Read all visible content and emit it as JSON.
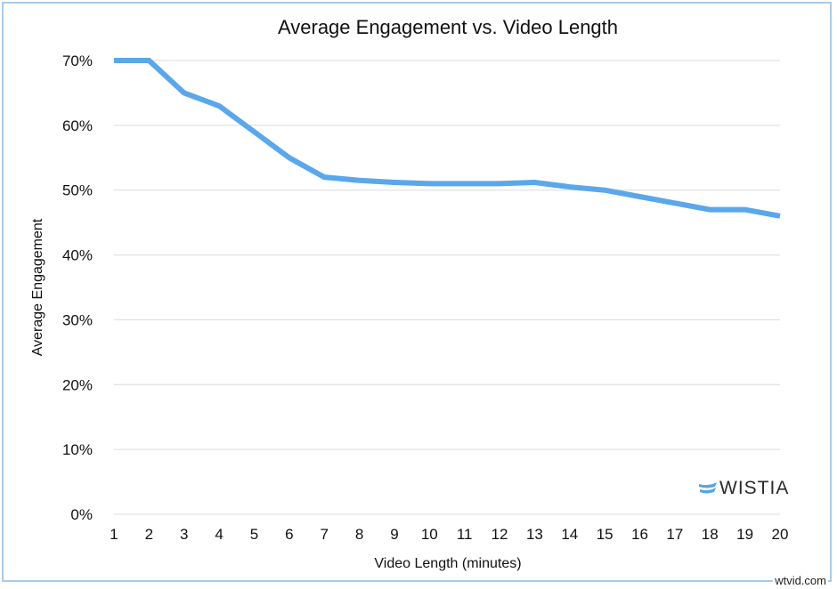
{
  "chart_data": {
    "type": "line",
    "title": "Average Engagement vs. Video Length",
    "xlabel": "Video Length (minutes)",
    "ylabel": "Average Engagement",
    "x": [
      1,
      2,
      3,
      4,
      5,
      6,
      7,
      8,
      9,
      10,
      11,
      12,
      13,
      14,
      15,
      16,
      17,
      18,
      19,
      20
    ],
    "series": [
      {
        "values": [
          70,
          70,
          65,
          63,
          59,
          55,
          52,
          51.5,
          51.2,
          51,
          51,
          51,
          51.2,
          50.5,
          50,
          49,
          48,
          47,
          47,
          46
        ],
        "color": "#5aa7ec"
      }
    ],
    "yticks": [
      "0%",
      "10%",
      "20%",
      "30%",
      "40%",
      "50%",
      "60%",
      "70%"
    ],
    "ylim": [
      0,
      70
    ],
    "xlim": [
      1,
      20
    ],
    "grid": true,
    "legend": "none"
  },
  "logo": {
    "text": "WISTIA",
    "color": "#54a6e8"
  },
  "watermark": "wtvid.com"
}
